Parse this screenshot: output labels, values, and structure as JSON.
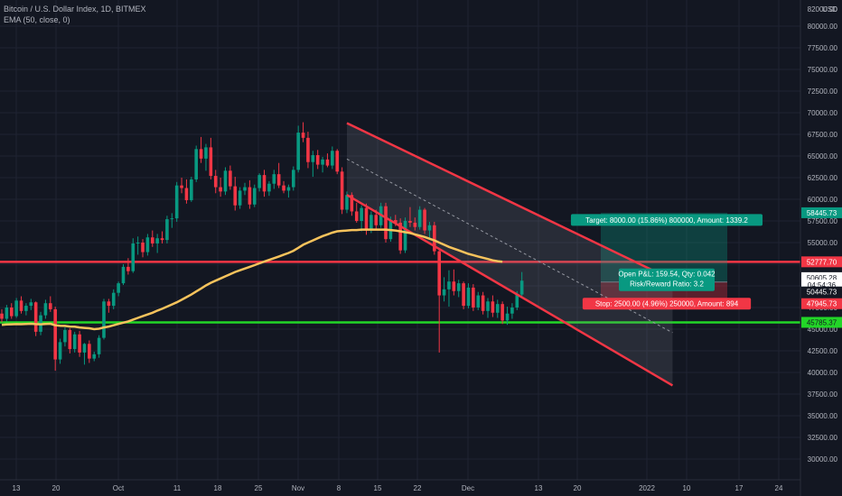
{
  "header": {
    "symbol": "Bitcoin / U.S. Dollar Index, 1D, BITMEX",
    "indicator": "EMA (50, close, 0)"
  },
  "chart_data": {
    "type": "candlestick",
    "price_axis": {
      "currency": "USD",
      "ticks": [
        82000,
        80000,
        77500,
        75000,
        72500,
        70000,
        67500,
        65000,
        62500,
        60000,
        57500,
        55000,
        52500,
        50000,
        47500,
        45000,
        42500,
        40000,
        37500,
        35000,
        32500,
        30000
      ],
      "tick_labels": [
        "82000.00",
        "80000.00",
        "77500.00",
        "75000.00",
        "72500.00",
        "70000.00",
        "67500.00",
        "65000.00",
        "62500.00",
        "60000.00",
        "57500.00",
        "55000.00",
        "52500.00",
        "50000.00",
        "47500.00",
        "45000.00",
        "42500.00",
        "40000.00",
        "37500.00",
        "35000.00",
        "32500.00",
        "30000.00"
      ]
    },
    "time_axis": {
      "labels": [
        "13",
        "20",
        "Oct",
        "11",
        "18",
        "25",
        "Nov",
        "8",
        "15",
        "22",
        "Dec",
        "13",
        "20",
        "2022",
        "10",
        "17",
        "24"
      ]
    },
    "candles": [
      [
        46800,
        47300,
        45800,
        46200
      ],
      [
        46200,
        47800,
        45900,
        47500
      ],
      [
        47500,
        48000,
        46200,
        46500
      ],
      [
        46500,
        48600,
        46300,
        48300
      ],
      [
        48300,
        48800,
        46800,
        47100
      ],
      [
        47100,
        48000,
        46600,
        47700
      ],
      [
        47700,
        48500,
        47200,
        48100
      ],
      [
        48100,
        48200,
        44200,
        44700
      ],
      [
        44700,
        47000,
        44300,
        46600
      ],
      [
        46600,
        48400,
        46200,
        48000
      ],
      [
        48000,
        48800,
        47000,
        47300
      ],
      [
        47300,
        47600,
        40200,
        41500
      ],
      [
        41500,
        43900,
        41000,
        43500
      ],
      [
        43500,
        45200,
        43000,
        44900
      ],
      [
        44900,
        45100,
        42200,
        42700
      ],
      [
        42700,
        44700,
        42300,
        44400
      ],
      [
        44400,
        44800,
        41800,
        42300
      ],
      [
        42300,
        43400,
        40900,
        43300
      ],
      [
        43300,
        43700,
        41100,
        41600
      ],
      [
        41600,
        42400,
        41300,
        42100
      ],
      [
        42100,
        44300,
        41700,
        44000
      ],
      [
        44000,
        48500,
        43800,
        48200
      ],
      [
        48200,
        48500,
        46900,
        47700
      ],
      [
        47700,
        49600,
        47300,
        49200
      ],
      [
        49200,
        50500,
        48800,
        50300
      ],
      [
        50300,
        52500,
        50100,
        52200
      ],
      [
        52200,
        53200,
        51300,
        51700
      ],
      [
        51700,
        55500,
        51500,
        54900
      ],
      [
        54900,
        55700,
        53600,
        55000
      ],
      [
        55000,
        55400,
        53300,
        53900
      ],
      [
        53900,
        56000,
        53500,
        55600
      ],
      [
        55600,
        56400,
        54500,
        54900
      ],
      [
        54900,
        56000,
        53800,
        55500
      ],
      [
        55500,
        56300,
        54900,
        55300
      ],
      [
        55300,
        58100,
        54900,
        57700
      ],
      [
        57700,
        58400,
        56700,
        57800
      ],
      [
        57800,
        62000,
        57400,
        61600
      ],
      [
        61600,
        62500,
        60700,
        61300
      ],
      [
        61300,
        62300,
        59500,
        59900
      ],
      [
        59900,
        62600,
        59700,
        62300
      ],
      [
        62300,
        66200,
        62000,
        65800
      ],
      [
        65800,
        67200,
        64200,
        64700
      ],
      [
        64700,
        66400,
        63300,
        66000
      ],
      [
        66000,
        67100,
        62300,
        62700
      ],
      [
        62700,
        63400,
        60700,
        61400
      ],
      [
        61400,
        62500,
        60300,
        60900
      ],
      [
        60900,
        63700,
        60500,
        63300
      ],
      [
        63300,
        63900,
        61100,
        61500
      ],
      [
        61500,
        62600,
        58700,
        59300
      ],
      [
        59300,
        61400,
        58900,
        61000
      ],
      [
        61000,
        61900,
        60500,
        61400
      ],
      [
        61400,
        62200,
        58900,
        59400
      ],
      [
        59400,
        61700,
        59100,
        61300
      ],
      [
        61300,
        63000,
        60900,
        62800
      ],
      [
        62800,
        63400,
        60300,
        60900
      ],
      [
        60900,
        62100,
        60400,
        61800
      ],
      [
        61800,
        63400,
        61200,
        62900
      ],
      [
        62900,
        64200,
        61300,
        61600
      ],
      [
        61600,
        62100,
        60700,
        61000
      ],
      [
        61000,
        61700,
        60200,
        61400
      ],
      [
        61400,
        63800,
        61000,
        63400
      ],
      [
        63400,
        68500,
        63100,
        67700
      ],
      [
        67700,
        68900,
        66600,
        67100
      ],
      [
        67100,
        67800,
        63600,
        64300
      ],
      [
        64300,
        65600,
        62600,
        65100
      ],
      [
        65100,
        65700,
        63500,
        64000
      ],
      [
        64000,
        64900,
        63100,
        64600
      ],
      [
        64600,
        65300,
        63700,
        63900
      ],
      [
        63900,
        66100,
        63500,
        65600
      ],
      [
        65600,
        65800,
        62900,
        63200
      ],
      [
        63200,
        63700,
        58300,
        58800
      ],
      [
        58800,
        60900,
        58400,
        60500
      ],
      [
        60500,
        60800,
        58100,
        58600
      ],
      [
        58600,
        59600,
        57300,
        57500
      ],
      [
        57500,
        59300,
        56300,
        59000
      ],
      [
        59000,
        59500,
        55900,
        56400
      ],
      [
        56400,
        58600,
        56100,
        58200
      ],
      [
        58200,
        58800,
        56600,
        57000
      ],
      [
        57000,
        59600,
        56700,
        59200
      ],
      [
        59200,
        59600,
        55000,
        55400
      ],
      [
        55400,
        58000,
        55100,
        57600
      ],
      [
        57600,
        58200,
        56900,
        57300
      ],
      [
        57300,
        57800,
        53700,
        54100
      ],
      [
        54100,
        57900,
        53800,
        57500
      ],
      [
        57500,
        59100,
        56800,
        57300
      ],
      [
        57300,
        57900,
        56400,
        56800
      ],
      [
        56800,
        59200,
        56500,
        58800
      ],
      [
        58800,
        59000,
        56000,
        56400
      ],
      [
        56400,
        57400,
        55500,
        57000
      ],
      [
        57000,
        57400,
        53600,
        54000
      ],
      [
        54000,
        54400,
        42300,
        48900
      ],
      [
        48900,
        51000,
        48200,
        49600
      ],
      [
        49600,
        51800,
        47600,
        50500
      ],
      [
        50500,
        51900,
        48900,
        49400
      ],
      [
        49400,
        50700,
        48700,
        50300
      ],
      [
        50300,
        50500,
        47300,
        47700
      ],
      [
        47700,
        50300,
        47400,
        49800
      ],
      [
        49800,
        50200,
        47100,
        47500
      ],
      [
        47500,
        49300,
        47200,
        48900
      ],
      [
        48900,
        49300,
        46700,
        47100
      ],
      [
        47100,
        48600,
        46300,
        48200
      ],
      [
        48200,
        48900,
        46400,
        46900
      ],
      [
        46900,
        48400,
        46300,
        47900
      ],
      [
        47900,
        48200,
        45600,
        46000
      ],
      [
        46000,
        47600,
        45500,
        46800
      ],
      [
        46800,
        48000,
        46200,
        47500
      ],
      [
        47500,
        49400,
        47200,
        49000
      ],
      [
        49000,
        51600,
        48700,
        50600
      ]
    ],
    "ema": {
      "name": "EMA (50, close, 0)",
      "values": [
        45500,
        45550,
        45560,
        45580,
        45570,
        45600,
        45620,
        45580,
        45560,
        45600,
        45620,
        45450,
        45400,
        45380,
        45300,
        45280,
        45200,
        45150,
        45100,
        45000,
        45050,
        45200,
        45300,
        45450,
        45600,
        45750,
        45900,
        46100,
        46300,
        46500,
        46700,
        46900,
        47150,
        47350,
        47600,
        47850,
        48100,
        48400,
        48700,
        49000,
        49350,
        49700,
        50050,
        50350,
        50600,
        50850,
        51100,
        51350,
        51600,
        51800,
        52000,
        52200,
        52400,
        52600,
        52800,
        53000,
        53200,
        53400,
        53600,
        53800,
        54050,
        54400,
        54750,
        55000,
        55250,
        55500,
        55750,
        55950,
        56150,
        56300,
        56350,
        56400,
        56450,
        56450,
        56500,
        56500,
        56500,
        56500,
        56500,
        56500,
        56450,
        56400,
        56300,
        56200,
        56100,
        55950,
        55800,
        55650,
        55450,
        55250,
        55000,
        54750,
        54500,
        54300,
        54100,
        53900,
        53700,
        53550,
        53400,
        53250,
        53100,
        52950,
        52850,
        52780
      ]
    },
    "channel": {
      "upper": {
        "from": [
          0,
          68800
        ],
        "to": [
          67,
          50700
        ]
      },
      "lower": {
        "from": [
          0,
          60500
        ],
        "to": [
          67,
          38500
        ]
      }
    },
    "horizontal_levels": [
      {
        "price": 52777.7,
        "color": "#f23645"
      },
      {
        "price": 45785.37,
        "color": "#22d627"
      }
    ],
    "position": {
      "target_label": "Target: 8000.00 (15.86%) 800000, Amount: 1339.2",
      "pnl_label": "Open P&L: 159.54, Qty: 0.042",
      "ratio_label": "Risk/Reward Ratio: 3.2",
      "stop_label": "Stop: 2500.00 (4.96%) 250000, Amount: 894",
      "entry": 50445.73,
      "target": 58445.73,
      "stop": 47945.73
    },
    "price_tags": [
      {
        "label": "58445.73",
        "price": 58445.73,
        "bg": "#089981",
        "fg": "#ffffff"
      },
      {
        "label": "52777.70",
        "price": 52777.7,
        "bg": "#f23645",
        "fg": "#ffffff"
      },
      {
        "label": "50605.28",
        "price": 50950,
        "bg": "#ffffff",
        "fg": "#131722"
      },
      {
        "label": "04:54:36",
        "price": 50100,
        "bg": "#ffffff",
        "fg": "#131722"
      },
      {
        "label": "50445.73",
        "price": 49300,
        "bg": "#131722",
        "fg": "#ffffff"
      },
      {
        "label": "47945.73",
        "price": 47945.73,
        "bg": "#f23645",
        "fg": "#ffffff"
      },
      {
        "label": "45785.37",
        "price": 45785.37,
        "bg": "#22d627",
        "fg": "#131722"
      }
    ],
    "colors": {
      "up": "#089981",
      "down": "#f23645",
      "ema": "#f7c35c",
      "channel": "#f23645",
      "background": "#131722"
    }
  }
}
